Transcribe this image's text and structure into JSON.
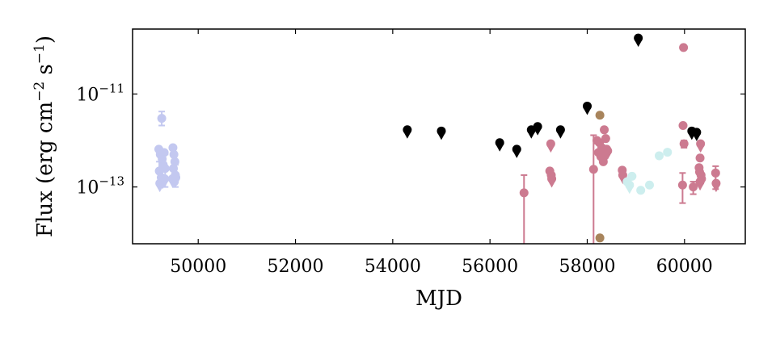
{
  "chart_data": {
    "type": "scatter",
    "xlabel": "MJD",
    "ylabel": "Flux (erg cm",
    "ylabel_sup1": "−2",
    "ylabel_mid": " s",
    "ylabel_sup2": "−1",
    "ylabel_end": ")",
    "xlim": [
      48650,
      61250
    ],
    "ylog": true,
    "ylim": [
      6e-15,
      2.5e-10
    ],
    "xticks": [
      50000,
      52000,
      54000,
      56000,
      58000,
      60000
    ],
    "xtick_labels": [
      "50000",
      "52000",
      "54000",
      "56000",
      "58000",
      "60000"
    ],
    "yticks": [
      1e-13,
      1e-11
    ],
    "ytick_labels": [
      {
        "base": "10",
        "exp": "−13"
      },
      {
        "base": "10",
        "exp": "−11"
      }
    ],
    "grid": false,
    "colors": {
      "lavender": "#c3c8f0",
      "black": "#000000",
      "pink": "#cc7a90",
      "brown": "#a8845c",
      "lightcyan": "#cdeeee"
    },
    "series": [
      {
        "color_key": "lavender",
        "points": [
          {
            "x": 49250,
            "y": 3e-12,
            "err": [
              2.1e-12,
              4.2e-12
            ]
          },
          {
            "x": 49190,
            "y": 6.5e-13
          },
          {
            "x": 49220,
            "y": 5e-13
          },
          {
            "x": 49260,
            "y": 4e-13
          },
          {
            "x": 49280,
            "y": 3e-13
          },
          {
            "x": 49200,
            "y": 2.2e-13,
            "err": [
              1.2e-13,
              3.5e-13
            ]
          },
          {
            "x": 49240,
            "y": 1.6e-13
          },
          {
            "x": 49300,
            "y": 5.5e-13
          },
          {
            "x": 49320,
            "y": 2.5e-13,
            "err": [
              1e-13,
              5e-13
            ]
          },
          {
            "x": 49210,
            "y": 1.2e-13,
            "upper": true
          },
          {
            "x": 49270,
            "y": 1.4e-13,
            "upper": true
          },
          {
            "x": 49310,
            "y": 1.5e-13,
            "upper": true
          },
          {
            "x": 49480,
            "y": 7e-13
          },
          {
            "x": 49500,
            "y": 5e-13
          },
          {
            "x": 49520,
            "y": 3.5e-13
          },
          {
            "x": 49490,
            "y": 2.5e-13
          },
          {
            "x": 49530,
            "y": 1.8e-13,
            "err": [
              1e-13,
              3e-13
            ]
          },
          {
            "x": 49510,
            "y": 1.3e-13
          },
          {
            "x": 49470,
            "y": 1.5e-13,
            "upper": true
          },
          {
            "x": 49540,
            "y": 1.6e-13,
            "upper": true
          }
        ]
      },
      {
        "color_key": "black",
        "points": [
          {
            "x": 54300,
            "y": 1.7e-12,
            "upper": true
          },
          {
            "x": 55000,
            "y": 1.6e-12,
            "upper": true
          },
          {
            "x": 56200,
            "y": 9e-13,
            "upper": true
          },
          {
            "x": 56550,
            "y": 6.5e-13,
            "upper": true
          },
          {
            "x": 56850,
            "y": 1.7e-12,
            "upper": true
          },
          {
            "x": 56980,
            "y": 2e-12,
            "upper": true
          },
          {
            "x": 57450,
            "y": 1.7e-12,
            "upper": true
          },
          {
            "x": 58000,
            "y": 5.5e-12,
            "upper": true
          },
          {
            "x": 59050,
            "y": 1.6e-10,
            "upper": true
          },
          {
            "x": 60150,
            "y": 1.6e-12,
            "upper": true
          },
          {
            "x": 60250,
            "y": 1.5e-12,
            "upper": true
          }
        ]
      },
      {
        "color_key": "pink",
        "points": [
          {
            "x": 56700,
            "y": 7.5e-14,
            "err": [
              6e-15,
              1.8e-13
            ]
          },
          {
            "x": 57250,
            "y": 8.5e-13,
            "upper": true
          },
          {
            "x": 57230,
            "y": 2.2e-13
          },
          {
            "x": 57260,
            "y": 1.8e-13,
            "upper": true
          },
          {
            "x": 57270,
            "y": 1.5e-13,
            "upper": true
          },
          {
            "x": 58130,
            "y": 2.4e-13,
            "err": [
              6e-15,
              1.3e-12
            ]
          },
          {
            "x": 58200,
            "y": 1e-12
          },
          {
            "x": 58250,
            "y": 9e-13
          },
          {
            "x": 58300,
            "y": 7e-13
          },
          {
            "x": 58350,
            "y": 1.7e-12
          },
          {
            "x": 58380,
            "y": 1.1e-12
          },
          {
            "x": 58400,
            "y": 6.5e-13
          },
          {
            "x": 58230,
            "y": 5.5e-13
          },
          {
            "x": 58280,
            "y": 4.5e-13
          },
          {
            "x": 58330,
            "y": 3.5e-13
          },
          {
            "x": 58360,
            "y": 5e-13,
            "upper": true
          },
          {
            "x": 58420,
            "y": 6e-13,
            "upper": true
          },
          {
            "x": 58720,
            "y": 2.3e-13
          },
          {
            "x": 58730,
            "y": 1.8e-13,
            "upper": true
          },
          {
            "x": 59980,
            "y": 1e-10
          },
          {
            "x": 59970,
            "y": 2.1e-12
          },
          {
            "x": 59990,
            "y": 8.5e-13,
            "err": [
              7e-13,
              1e-12
            ]
          },
          {
            "x": 59960,
            "y": 1.1e-13,
            "err": [
              4.5e-14,
              2e-13
            ]
          },
          {
            "x": 60180,
            "y": 1e-13,
            "err": [
              7e-14,
              1.3e-13
            ]
          },
          {
            "x": 60330,
            "y": 8.5e-13,
            "upper": true
          },
          {
            "x": 60320,
            "y": 4.2e-13
          },
          {
            "x": 60300,
            "y": 2.6e-13
          },
          {
            "x": 60310,
            "y": 2.1e-13
          },
          {
            "x": 60340,
            "y": 1.8e-13
          },
          {
            "x": 60320,
            "y": 1.3e-13,
            "upper": true
          },
          {
            "x": 60350,
            "y": 1.5e-13,
            "upper": true
          },
          {
            "x": 60640,
            "y": 2e-13,
            "err": [
              9e-14,
              2.8e-13
            ]
          },
          {
            "x": 60650,
            "y": 1.2e-13,
            "upper": true
          }
        ]
      },
      {
        "color_key": "brown",
        "points": [
          {
            "x": 58260,
            "y": 3.5e-12
          },
          {
            "x": 58260,
            "y": 8e-15
          }
        ]
      },
      {
        "color_key": "lightcyan",
        "points": [
          {
            "x": 58820,
            "y": 1.3e-13
          },
          {
            "x": 58870,
            "y": 1.1e-13,
            "upper": true
          },
          {
            "x": 58920,
            "y": 1.7e-13
          },
          {
            "x": 59100,
            "y": 8.5e-14
          },
          {
            "x": 59280,
            "y": 1.1e-13
          },
          {
            "x": 59480,
            "y": 4.7e-13
          },
          {
            "x": 59650,
            "y": 5.6e-13
          }
        ]
      }
    ]
  }
}
